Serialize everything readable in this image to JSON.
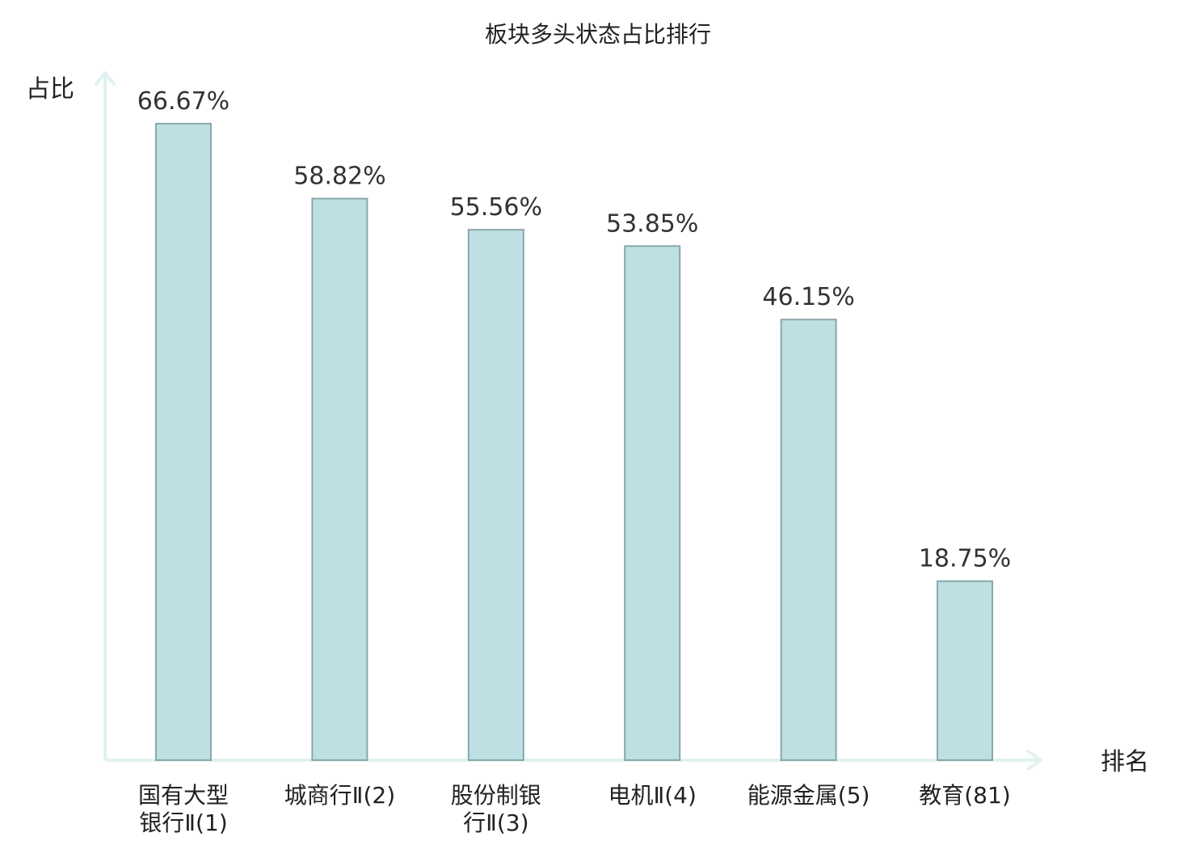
{
  "chart_data": {
    "type": "bar",
    "title": "板块多头状态占比排行",
    "ylabel": "占比",
    "xlabel": "排名",
    "ylim": [
      0,
      72
    ],
    "grid": false,
    "categories": [
      [
        "国有大型",
        "银行Ⅱ(1)"
      ],
      [
        "城商行Ⅱ(2)"
      ],
      [
        "股份制银",
        "行Ⅱ(3)"
      ],
      [
        "电机Ⅱ(4)"
      ],
      [
        "能源金属(5)"
      ],
      [
        "教育(81)"
      ]
    ],
    "values": [
      66.67,
      58.82,
      55.56,
      53.85,
      46.15,
      18.75
    ],
    "value_labels": [
      "66.67%",
      "58.82%",
      "55.56%",
      "53.85%",
      "46.15%",
      "18.75%"
    ],
    "highlight_index": 5,
    "colors": {
      "bar_fill": "#bde0e3",
      "bar_stroke": "#89a8aa",
      "axis": "#e0f2f0",
      "highlight_text": "#e0241c",
      "text": "#333333"
    }
  }
}
